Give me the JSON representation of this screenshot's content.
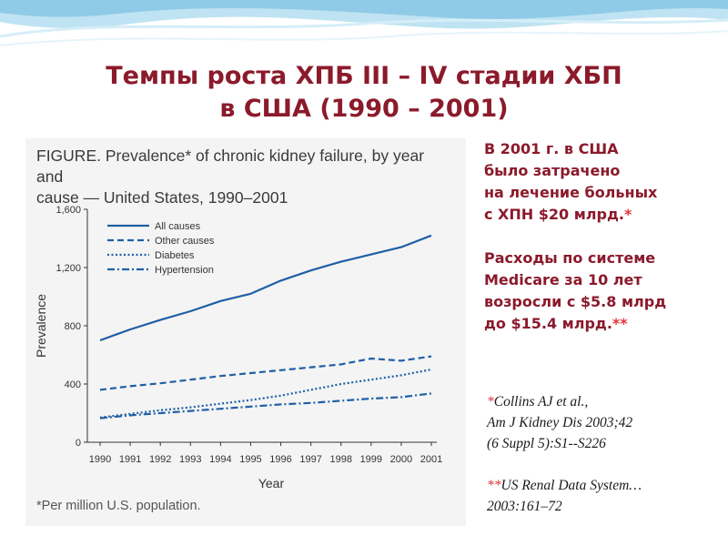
{
  "slide": {
    "title_line1": "Темпы роста ХПБ III – IV стадии ХБП",
    "title_line2": "в США  (1990 – 2001)"
  },
  "figure": {
    "caption_line1": "FIGURE. Prevalence* of chronic kidney failure, by year and",
    "caption_line2": "cause — United States, 1990–2001",
    "footnote": "*Per million U.S. population."
  },
  "side": {
    "p1": [
      "В 2001 г. в США",
      "было затрачено",
      "на лечение больных",
      "с ХПН $20 млрд."
    ],
    "p1_star": "*",
    "p2": [
      "Расходы по системе",
      "Medicare за 10 лет",
      "возросли с $5.8 млрд",
      "до $15.4 млрд."
    ],
    "p2_star": "**"
  },
  "refs": {
    "r1_star": "*",
    "r1": [
      "Collins AJ et al.,",
      "Am J Kidney Dis 2003;42",
      "(6 Suppl 5):S1--S226"
    ],
    "r2_star": "**",
    "r2": [
      "US Renal Data System…",
      "2003:161–72"
    ]
  },
  "colors": {
    "title": "#8b1a2b",
    "series": "#1f5fa6",
    "star": "#e3343b"
  },
  "chart_data": {
    "type": "line",
    "title": "FIGURE. Prevalence* of chronic kidney failure, by year and cause — United States, 1990–2001",
    "xlabel": "Year",
    "ylabel": "Prevalence",
    "x": [
      "1990",
      "1991",
      "1992",
      "1993",
      "1994",
      "1995",
      "1996",
      "1997",
      "1998",
      "1999",
      "2000",
      "2001"
    ],
    "y_ticks": [
      "0",
      "400",
      "800",
      "1,200",
      "1,600"
    ],
    "ylim": [
      0,
      1600
    ],
    "grid": false,
    "legend_position": "top-left",
    "series": [
      {
        "name": "All causes",
        "dash": "solid",
        "values": [
          700,
          775,
          840,
          900,
          970,
          1020,
          1110,
          1180,
          1240,
          1290,
          1340,
          1420
        ]
      },
      {
        "name": "Other causes",
        "dash": "dashed",
        "values": [
          360,
          385,
          405,
          430,
          455,
          475,
          495,
          515,
          535,
          575,
          560,
          590
        ]
      },
      {
        "name": "Diabetes",
        "dash": "dotted",
        "values": [
          170,
          195,
          220,
          240,
          265,
          290,
          320,
          360,
          400,
          430,
          460,
          500
        ]
      },
      {
        "name": "Hypertension",
        "dash": "dashdot",
        "values": [
          165,
          185,
          200,
          215,
          230,
          245,
          260,
          270,
          285,
          300,
          310,
          335
        ]
      }
    ]
  }
}
